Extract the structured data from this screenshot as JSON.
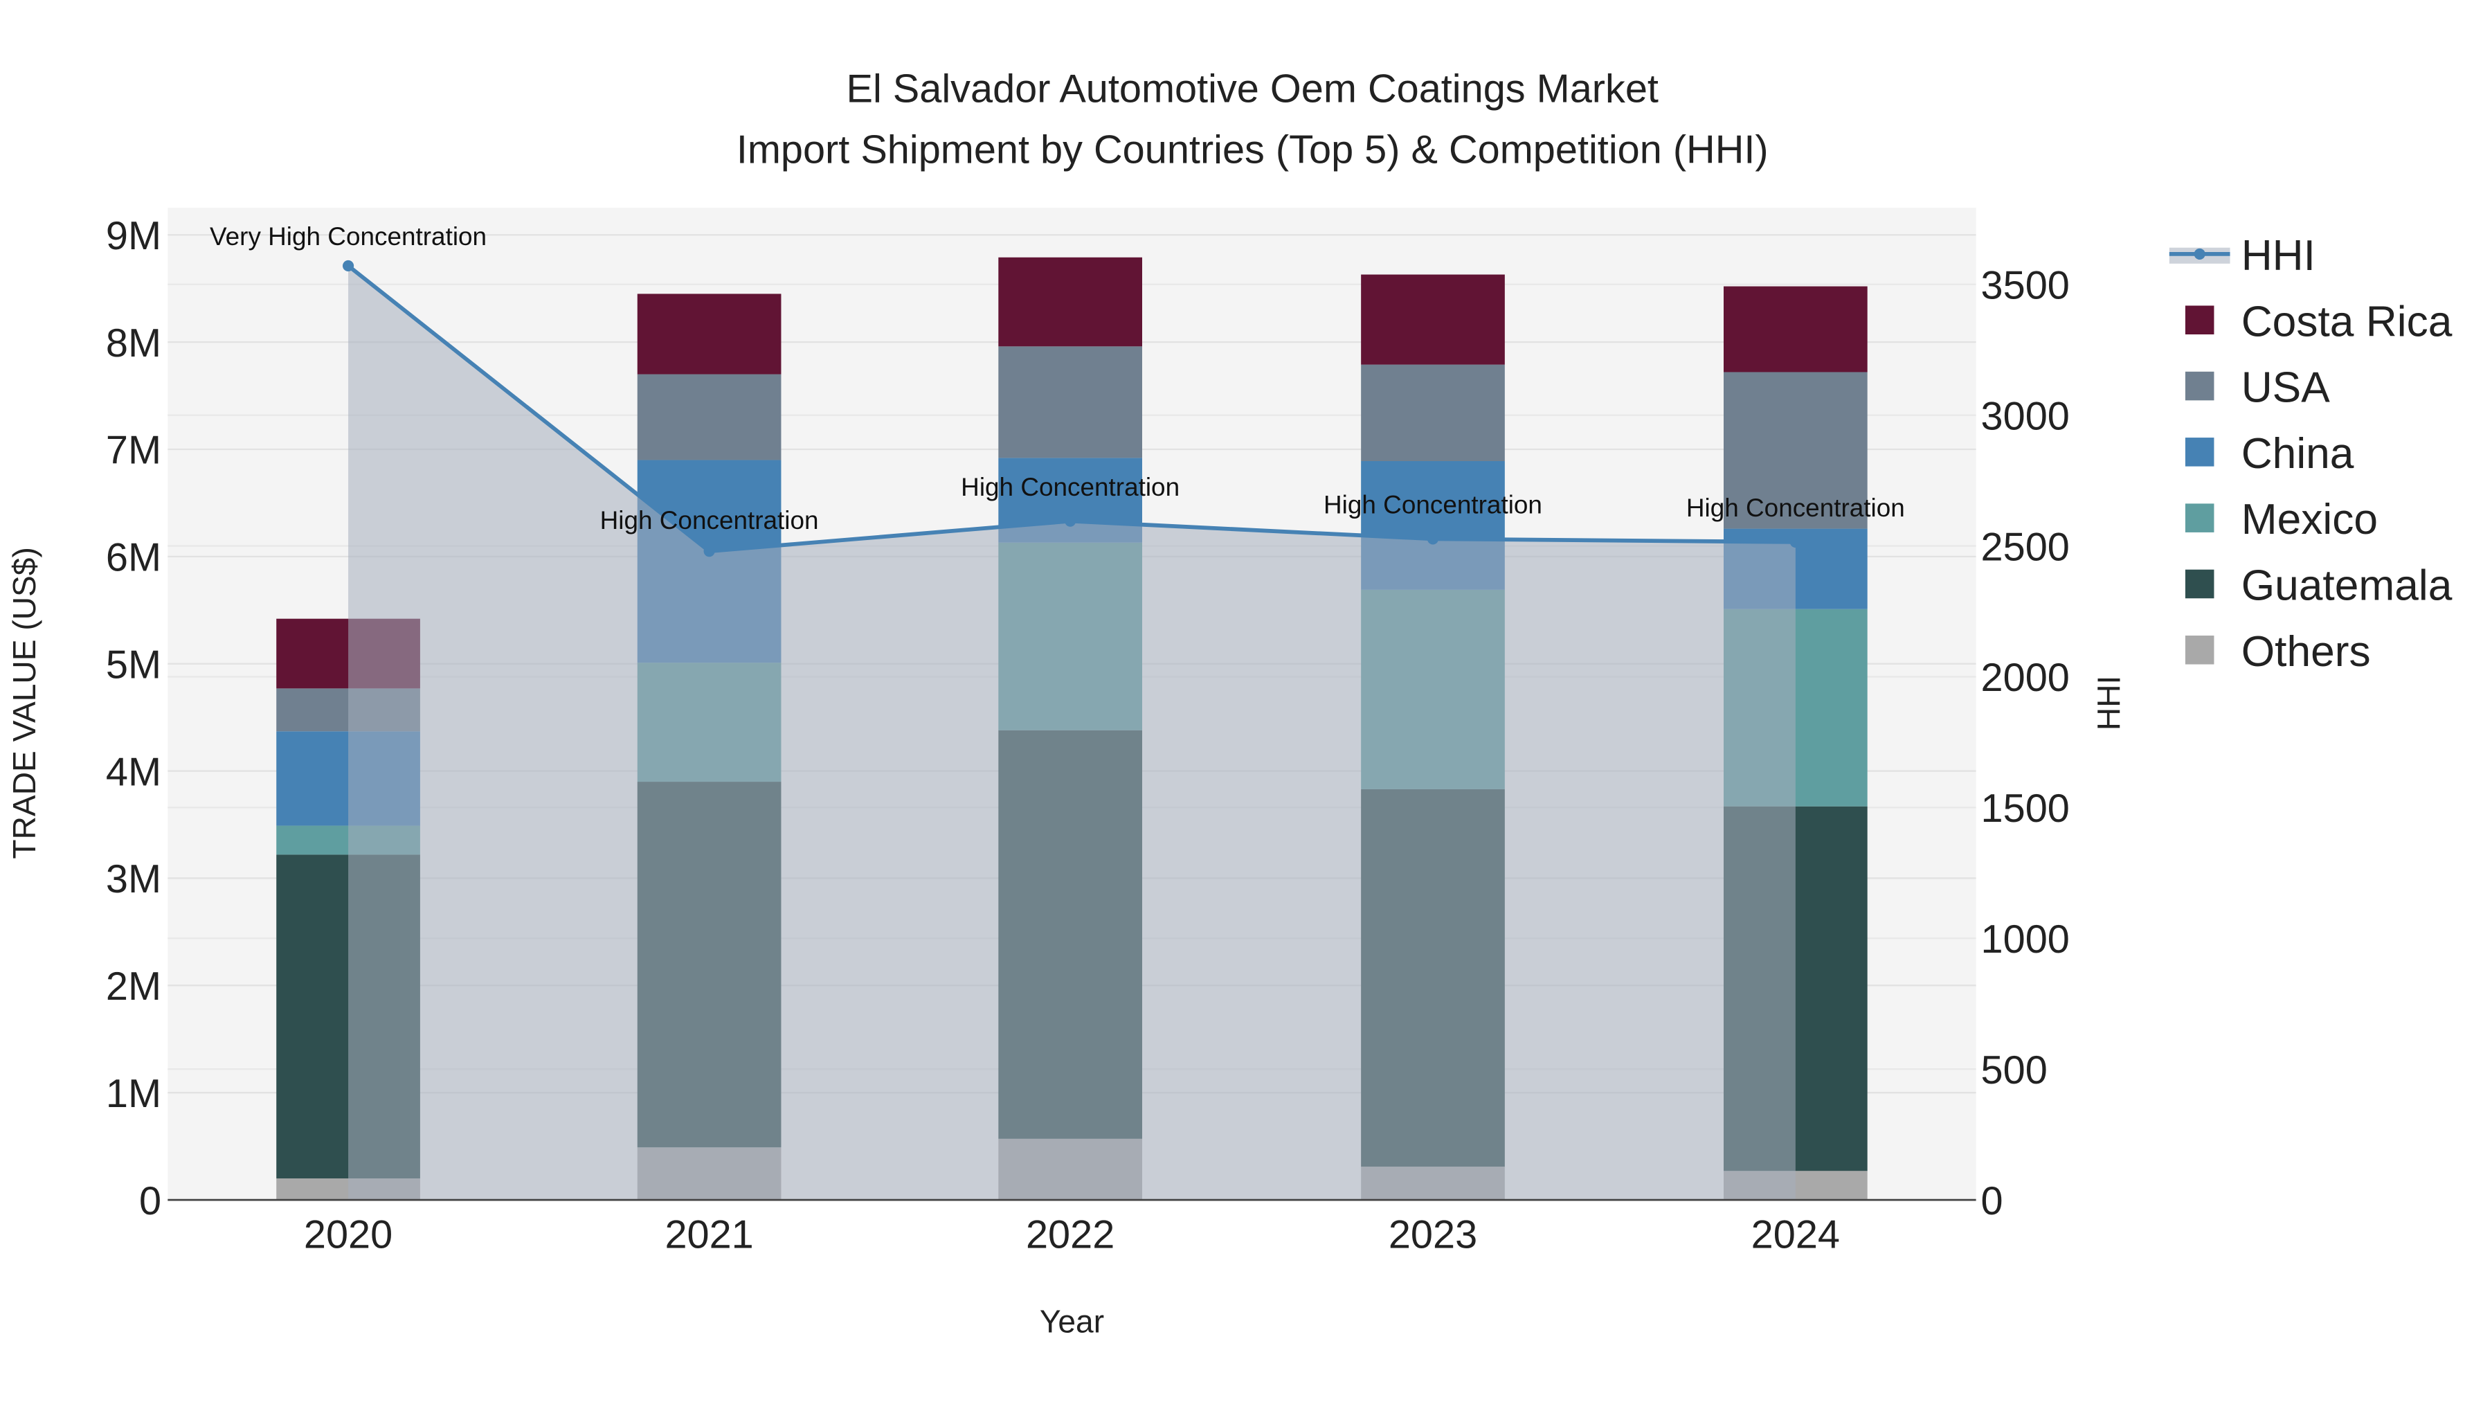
{
  "chart_data": {
    "type": "bar",
    "stacked": true,
    "title": "El Salvador Automotive Oem Coatings Market",
    "subtitle": "Import Shipment by Countries (Top 5) & Competition (HHI)",
    "xlabel": "Year",
    "ylabel": "TRADE VALUE (US$)",
    "y2label": "HHI",
    "categories": [
      "2020",
      "2021",
      "2022",
      "2023",
      "2024"
    ],
    "ylim": [
      0,
      9200000
    ],
    "y2lim": [
      0,
      3780
    ],
    "yticks": [
      0,
      1000000,
      2000000,
      3000000,
      4000000,
      5000000,
      6000000,
      7000000,
      8000000,
      9000000
    ],
    "ytick_labels": [
      "0",
      "1M",
      "2M",
      "3M",
      "4M",
      "5M",
      "6M",
      "7M",
      "8M",
      "9M"
    ],
    "y2ticks": [
      0,
      500,
      1000,
      1500,
      2000,
      2500,
      3000,
      3500
    ],
    "y2tick_labels": [
      "0",
      "500",
      "1000",
      "1500",
      "2000",
      "2500",
      "3000",
      "3500"
    ],
    "series": [
      {
        "name": "Others",
        "color": "#a9a9a9",
        "values": [
          200000,
          490000,
          570000,
          310000,
          270000
        ]
      },
      {
        "name": "Guatemala",
        "color": "#2f4f4f",
        "values": [
          3020000,
          3410000,
          3810000,
          3520000,
          3400000
        ]
      },
      {
        "name": "Mexico",
        "color": "#5f9ea0",
        "values": [
          270000,
          1110000,
          1750000,
          1860000,
          1840000
        ]
      },
      {
        "name": "China",
        "color": "#4682b4",
        "values": [
          880000,
          1890000,
          790000,
          1200000,
          750000
        ]
      },
      {
        "name": "USA",
        "color": "#708090",
        "values": [
          400000,
          800000,
          1040000,
          900000,
          1460000
        ]
      },
      {
        "name": "Costa Rica",
        "color": "#611434",
        "values": [
          650000,
          750000,
          830000,
          840000,
          800000
        ]
      }
    ],
    "hhi": {
      "name": "HHI",
      "color": "#4682b4",
      "values": [
        3571,
        2480,
        2595,
        2527,
        2515
      ],
      "annotations": [
        "Very High Concentration",
        "High Concentration",
        "High Concentration",
        "High Concentration",
        "High Concentration"
      ]
    },
    "legend": [
      "HHI",
      "Costa Rica",
      "USA",
      "China",
      "Mexico",
      "Guatemala",
      "Others"
    ],
    "legend_position": "right",
    "grid": true
  }
}
